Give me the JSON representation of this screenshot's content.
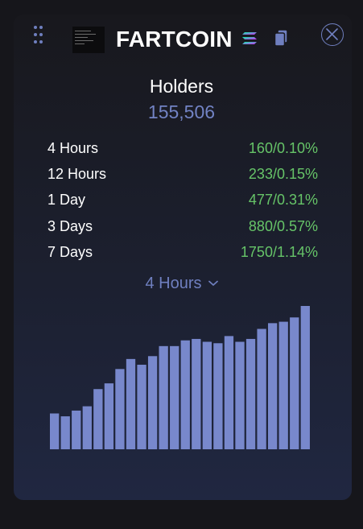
{
  "header": {
    "token_name": "FARTCOIN",
    "icons": {
      "drag": "drag-handle-icon",
      "chain": "solana-icon",
      "copy": "copy-icon",
      "close": "close-icon"
    }
  },
  "holders": {
    "title": "Holders",
    "count": "155,506"
  },
  "stats": [
    {
      "label": "4 Hours",
      "value": "160/0.10%"
    },
    {
      "label": "12 Hours",
      "value": "233/0.15%"
    },
    {
      "label": "1 Day",
      "value": "477/0.31%"
    },
    {
      "label": "3 Days",
      "value": "880/0.57%"
    },
    {
      "label": "7 Days",
      "value": "1750/1.14%"
    }
  ],
  "period_selector": {
    "selected": "4 Hours"
  },
  "colors": {
    "accent": "#6f7fbf",
    "positive": "#66c468",
    "bar": "#7888cc"
  },
  "chart_data": {
    "type": "bar",
    "title": "",
    "xlabel": "",
    "ylabel": "",
    "values": [
      25,
      23,
      27,
      30,
      42,
      46,
      56,
      63,
      59,
      65,
      72,
      72,
      76,
      77,
      75,
      74,
      79,
      75,
      77,
      84,
      88,
      89,
      92,
      100
    ],
    "ylim": [
      0,
      100
    ],
    "grid": false
  }
}
